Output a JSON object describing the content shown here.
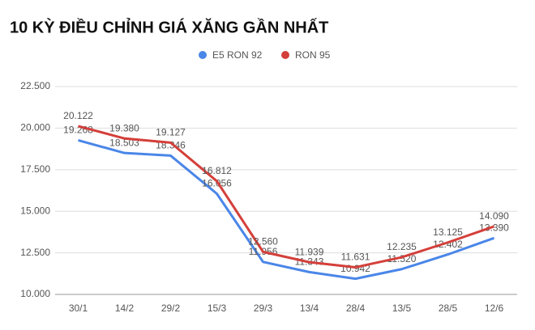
{
  "chart_data": {
    "type": "line",
    "title": "10 KỲ ĐIỀU CHỈNH GIÁ XĂNG GẦN NHẤT",
    "categories": [
      "30/1",
      "14/2",
      "29/2",
      "15/3",
      "29/3",
      "13/4",
      "28/4",
      "13/5",
      "28/5",
      "12/6"
    ],
    "series": [
      {
        "name": "E5 RON 92",
        "color": "#4a86e8",
        "values": [
          19268,
          18503,
          18346,
          16056,
          11956,
          11343,
          10942,
          11520,
          12402,
          13390
        ],
        "value_labels": [
          "19.268",
          "18.503",
          "18.346",
          "16.056",
          "11.956",
          "11.343",
          "10.942",
          "11.520",
          "12.402",
          "13.390"
        ]
      },
      {
        "name": "RON 95",
        "color": "#d43f3a",
        "values": [
          20122,
          19380,
          19127,
          16812,
          12560,
          11939,
          11631,
          12235,
          13125,
          14090
        ],
        "value_labels": [
          "20.122",
          "19.380",
          "19.127",
          "16.812",
          "12.560",
          "11.939",
          "11.631",
          "12.235",
          "13.125",
          "14.090"
        ]
      }
    ],
    "ylim": [
      10000,
      22500
    ],
    "yticks": [
      {
        "value": 10000,
        "label": "10.000"
      },
      {
        "value": 12500,
        "label": "12.500"
      },
      {
        "value": 15000,
        "label": "15.000"
      },
      {
        "value": 17500,
        "label": "17.500"
      },
      {
        "value": 20000,
        "label": "20.000"
      },
      {
        "value": 22500,
        "label": "22.500"
      }
    ],
    "grid": true,
    "legend": "top"
  }
}
